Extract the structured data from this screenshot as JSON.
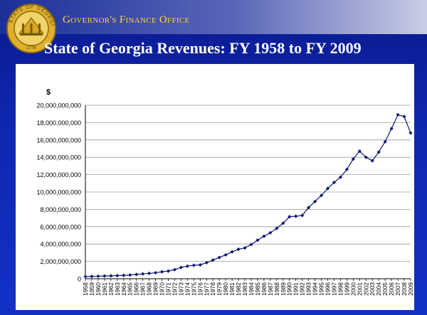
{
  "header": {
    "office_title": "Governor's Finance Office",
    "seal_text": "STATE OF GEORGIA",
    "seal_year": "1776"
  },
  "slide": {
    "title": "State of Georgia Revenues:  FY 1958 to FY 2009"
  },
  "colors": {
    "background": "#1231c4",
    "gold": "#ffd23a",
    "series": "#0c1a70"
  },
  "chart_data": {
    "type": "line",
    "title": "",
    "xlabel": "",
    "ylabel": "$",
    "ylim": [
      0,
      20000000000
    ],
    "yticks": [
      0,
      2000000000,
      4000000000,
      6000000000,
      8000000000,
      10000000000,
      12000000000,
      14000000000,
      16000000000,
      18000000000,
      20000000000
    ],
    "ytick_labels": [
      "0",
      "2,000,000,000",
      "4,000,000,000",
      "6,000,000,000",
      "8,000,000,000",
      "10,000,000,000",
      "12,000,000,000",
      "14,000,000,000",
      "16,000,000,000",
      "18,000,000,000",
      "20,000,000,000"
    ],
    "grid": true,
    "legend": "none",
    "categories": [
      "1958",
      "1959",
      "1960",
      "1961",
      "1962",
      "1963",
      "1964",
      "1965",
      "1966",
      "1967",
      "1968",
      "1969",
      "1970",
      "1971",
      "1972",
      "1973",
      "1974",
      "1975",
      "1976",
      "1977",
      "1978",
      "1979",
      "1980",
      "1981",
      "1982",
      "1983",
      "1984",
      "1985",
      "1986",
      "1987",
      "1988",
      "1989",
      "1990",
      "1991",
      "1992",
      "1993",
      "1994",
      "1995",
      "1996",
      "1997",
      "1998",
      "1999",
      "2000",
      "2001",
      "2002",
      "2003",
      "2004",
      "2005",
      "2006",
      "2007",
      "2008",
      "2009"
    ],
    "values": [
      250000000,
      270000000,
      290000000,
      320000000,
      340000000,
      360000000,
      390000000,
      430000000,
      490000000,
      560000000,
      620000000,
      690000000,
      800000000,
      880000000,
      1050000000,
      1300000000,
      1450000000,
      1550000000,
      1600000000,
      1850000000,
      2150000000,
      2450000000,
      2750000000,
      3100000000,
      3400000000,
      3550000000,
      3950000000,
      4450000000,
      4900000000,
      5300000000,
      5800000000,
      6400000000,
      7150000000,
      7200000000,
      7300000000,
      8200000000,
      8900000000,
      9600000000,
      10400000000,
      11100000000,
      11700000000,
      12600000000,
      13800000000,
      14700000000,
      14000000000,
      13600000000,
      14600000000,
      15800000000,
      17300000000,
      18900000000,
      18700000000,
      16800000000
    ]
  }
}
